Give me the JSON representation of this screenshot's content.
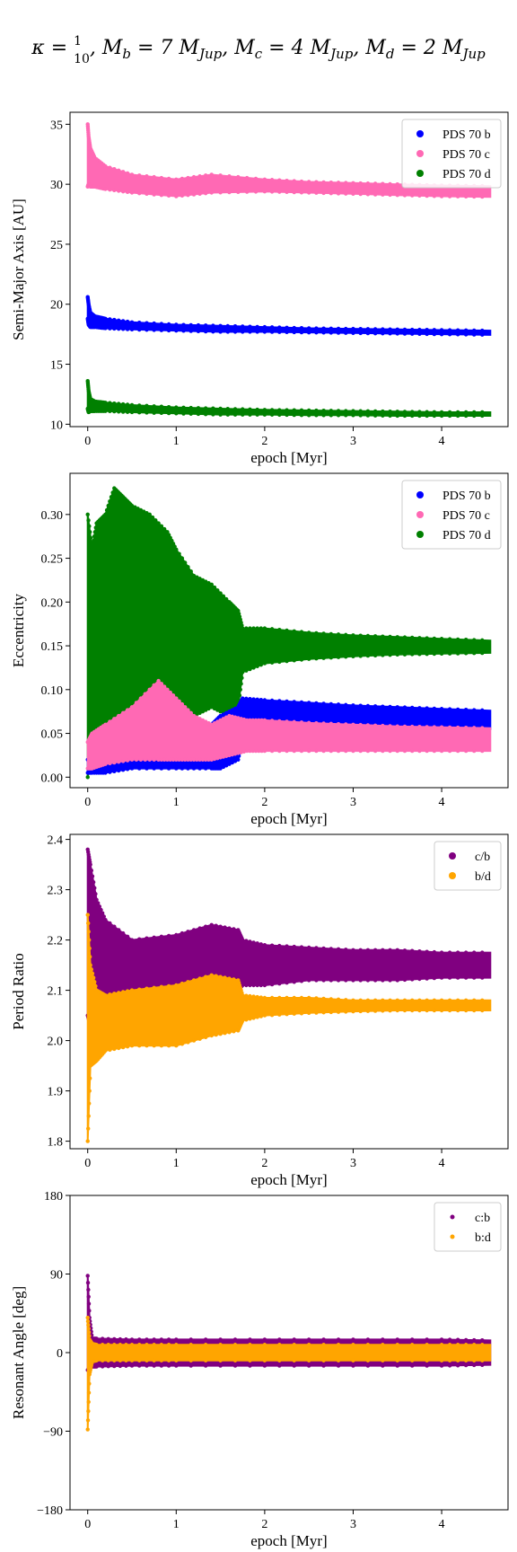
{
  "figure": {
    "title_parts": {
      "kappa": "κ = ",
      "frac_num": "1",
      "frac_den": "10",
      "mb": ", M",
      "mb_sub": "b",
      "mb_val": " = 7 M",
      "jup1": "Jup",
      "mc": ", M",
      "mc_sub": "c",
      "mc_val": " = 4 M",
      "jup2": "Jup",
      "md": ", M",
      "md_sub": "d",
      "md_val": " = 2 M",
      "jup3": "Jup"
    }
  },
  "colors": {
    "b": "#0000ff",
    "c": "#ff69b4",
    "d": "#008000",
    "cb": "#800080",
    "bd": "#ffa500"
  },
  "chart_data": [
    {
      "type": "scatter",
      "xlabel": "epoch [Myr]",
      "ylabel": "Semi-Major Axis [AU]",
      "xlim": [
        -0.2,
        4.75
      ],
      "ylim": [
        9.8,
        36
      ],
      "xticks": [
        0,
        1,
        2,
        3,
        4
      ],
      "yticks": [
        10,
        15,
        20,
        25,
        30,
        35
      ],
      "legend_position": "top-right",
      "series": [
        {
          "name": "PDS 70 b",
          "color": "#0000ff",
          "x": [
            0,
            0.01,
            0.03,
            0.08,
            0.2,
            0.5,
            1,
            1.5,
            2,
            2.5,
            3,
            3.5,
            4,
            4.55
          ],
          "upper": [
            20.6,
            20.0,
            19.3,
            19.0,
            18.8,
            18.5,
            18.3,
            18.2,
            18.1,
            18.0,
            17.95,
            17.9,
            17.85,
            17.8
          ],
          "lower": [
            18.8,
            18.3,
            18.1,
            18.1,
            18.0,
            17.9,
            17.8,
            17.7,
            17.7,
            17.65,
            17.6,
            17.55,
            17.5,
            17.45
          ]
        },
        {
          "name": "PDS 70 c",
          "color": "#ff69b4",
          "x": [
            0,
            0.01,
            0.03,
            0.08,
            0.2,
            0.5,
            1,
            1.4,
            2,
            2.5,
            3,
            3.5,
            4,
            4.55
          ],
          "upper": [
            35.0,
            34.0,
            33.0,
            32.2,
            31.5,
            30.8,
            30.4,
            30.8,
            30.4,
            30.2,
            30.1,
            30.0,
            29.9,
            29.85
          ],
          "lower": [
            29.8,
            30.0,
            29.8,
            29.8,
            29.6,
            29.3,
            29.0,
            29.3,
            29.4,
            29.3,
            29.2,
            29.1,
            29.0,
            28.95
          ]
        },
        {
          "name": "PDS 70 d",
          "color": "#008000",
          "x": [
            0,
            0.01,
            0.03,
            0.08,
            0.2,
            0.5,
            1,
            1.5,
            2,
            2.5,
            3,
            3.5,
            4,
            4.55
          ],
          "upper": [
            13.6,
            12.8,
            12.1,
            11.9,
            11.8,
            11.6,
            11.4,
            11.3,
            11.2,
            11.15,
            11.1,
            11.05,
            11.0,
            11.0
          ],
          "lower": [
            11.3,
            11.0,
            11.1,
            11.1,
            11.1,
            11.0,
            10.9,
            10.8,
            10.8,
            10.75,
            10.75,
            10.7,
            10.7,
            10.7
          ]
        }
      ]
    },
    {
      "type": "scatter",
      "xlabel": "epoch [Myr]",
      "ylabel": "Eccentricity",
      "xlim": [
        -0.2,
        4.75
      ],
      "ylim": [
        -0.012,
        0.347
      ],
      "xticks": [
        0,
        1,
        2,
        3,
        4
      ],
      "yticks": [
        0.0,
        0.05,
        0.1,
        0.15,
        0.2,
        0.25,
        0.3
      ],
      "legend_position": "top-right",
      "series": [
        {
          "name": "PDS 70 d",
          "color": "#008000",
          "x": [
            0,
            0.05,
            0.1,
            0.2,
            0.3,
            0.4,
            0.5,
            0.7,
            0.9,
            1.0,
            1.2,
            1.4,
            1.6,
            1.7,
            1.75,
            2.0,
            2.5,
            3.0,
            3.5,
            4.0,
            4.55
          ],
          "upper": [
            0.3,
            0.26,
            0.29,
            0.3,
            0.33,
            0.32,
            0.31,
            0.3,
            0.28,
            0.26,
            0.23,
            0.22,
            0.2,
            0.19,
            0.17,
            0.17,
            0.165,
            0.162,
            0.16,
            0.158,
            0.156
          ],
          "lower": [
            0.0,
            0.03,
            0.04,
            0.05,
            0.06,
            0.05,
            0.04,
            0.05,
            0.06,
            0.06,
            0.07,
            0.08,
            0.07,
            0.08,
            0.12,
            0.13,
            0.135,
            0.138,
            0.14,
            0.141,
            0.142
          ]
        },
        {
          "name": "PDS 70 b",
          "color": "#0000ff",
          "x": [
            0,
            0.05,
            0.2,
            0.5,
            1.0,
            1.4,
            1.5,
            1.7,
            1.75,
            2.0,
            2.5,
            3.0,
            3.5,
            4.0,
            4.55
          ],
          "upper": [
            0.02,
            0.02,
            0.03,
            0.05,
            0.06,
            0.06,
            0.07,
            0.08,
            0.09,
            0.088,
            0.085,
            0.082,
            0.08,
            0.078,
            0.076
          ],
          "lower": [
            0.005,
            0.005,
            0.005,
            0.01,
            0.01,
            0.01,
            0.01,
            0.02,
            0.045,
            0.048,
            0.05,
            0.052,
            0.053,
            0.054,
            0.055
          ]
        },
        {
          "name": "PDS 70 c",
          "color": "#ff69b4",
          "x": [
            0,
            0.05,
            0.2,
            0.5,
            0.8,
            1.0,
            1.2,
            1.4,
            1.6,
            1.8,
            2.0,
            2.5,
            3.0,
            3.5,
            4.0,
            4.55
          ],
          "upper": [
            0.04,
            0.05,
            0.06,
            0.08,
            0.11,
            0.09,
            0.07,
            0.06,
            0.07,
            0.065,
            0.065,
            0.062,
            0.06,
            0.058,
            0.057,
            0.056
          ],
          "lower": [
            0.01,
            0.01,
            0.015,
            0.02,
            0.02,
            0.02,
            0.02,
            0.02,
            0.025,
            0.03,
            0.03,
            0.03,
            0.03,
            0.03,
            0.03,
            0.03
          ]
        }
      ]
    },
    {
      "type": "scatter",
      "xlabel": "epoch [Myr]",
      "ylabel": "Period Ratio",
      "xlim": [
        -0.2,
        4.75
      ],
      "ylim": [
        1.785,
        2.41
      ],
      "xticks": [
        0,
        1,
        2,
        3,
        4
      ],
      "yticks": [
        1.8,
        1.9,
        2.0,
        2.1,
        2.2,
        2.3,
        2.4
      ],
      "legend_position": "top-right",
      "series": [
        {
          "name": "c/b",
          "color": "#800080",
          "x": [
            0,
            0.03,
            0.1,
            0.2,
            0.5,
            1.0,
            1.4,
            1.7,
            1.75,
            2.0,
            2.5,
            3.0,
            3.5,
            4.0,
            4.55
          ],
          "upper": [
            2.38,
            2.35,
            2.28,
            2.24,
            2.2,
            2.21,
            2.23,
            2.22,
            2.2,
            2.19,
            2.185,
            2.18,
            2.18,
            2.175,
            2.175
          ],
          "lower": [
            2.05,
            2.03,
            2.04,
            2.06,
            2.09,
            2.1,
            2.11,
            2.1,
            2.11,
            2.11,
            2.12,
            2.12,
            2.12,
            2.125,
            2.125
          ]
        },
        {
          "name": "b/d",
          "color": "#ffa500",
          "x": [
            0,
            0.03,
            0.1,
            0.2,
            0.5,
            1.0,
            1.4,
            1.7,
            1.75,
            2.0,
            2.5,
            3.0,
            3.5,
            4.0,
            4.55
          ],
          "upper": [
            2.25,
            2.15,
            2.1,
            2.09,
            2.1,
            2.11,
            2.13,
            2.12,
            2.09,
            2.085,
            2.085,
            2.08,
            2.08,
            2.08,
            2.08
          ],
          "lower": [
            1.8,
            1.95,
            1.96,
            1.98,
            1.99,
            1.99,
            2.01,
            2.02,
            2.04,
            2.05,
            2.055,
            2.058,
            2.06,
            2.06,
            2.06
          ]
        }
      ]
    },
    {
      "type": "scatter",
      "xlabel": "epoch [Myr]",
      "ylabel": "Resonant Angle [deg]",
      "xlim": [
        -0.2,
        4.75
      ],
      "ylim": [
        -180,
        180
      ],
      "xticks": [
        0,
        1,
        2,
        3,
        4
      ],
      "yticks": [
        -180,
        -90,
        0,
        90,
        180
      ],
      "ytick_labels": [
        "−180",
        "−90",
        "0",
        "90",
        "180"
      ],
      "legend_position": "top-right",
      "series": [
        {
          "name": "c:b",
          "color": "#800080",
          "x": [
            0,
            0.02,
            0.05,
            0.1,
            0.5,
            1,
            2,
            3,
            4,
            4.55
          ],
          "upper": [
            88,
            40,
            16,
            16,
            15,
            15,
            15,
            15,
            15,
            14
          ],
          "lower": [
            -20,
            -18,
            -16,
            -16,
            -15,
            -15,
            -15,
            -15,
            -15,
            -14
          ]
        },
        {
          "name": "b:d",
          "color": "#ffa500",
          "x": [
            0,
            0.02,
            0.05,
            0.1,
            0.5,
            1,
            2,
            3,
            4,
            4.55
          ],
          "upper": [
            40,
            15,
            10,
            9,
            9,
            9,
            9,
            9,
            9,
            9
          ],
          "lower": [
            -88,
            -25,
            -10,
            -9,
            -9,
            -9,
            -9,
            -9,
            -9,
            -9
          ]
        }
      ]
    }
  ]
}
